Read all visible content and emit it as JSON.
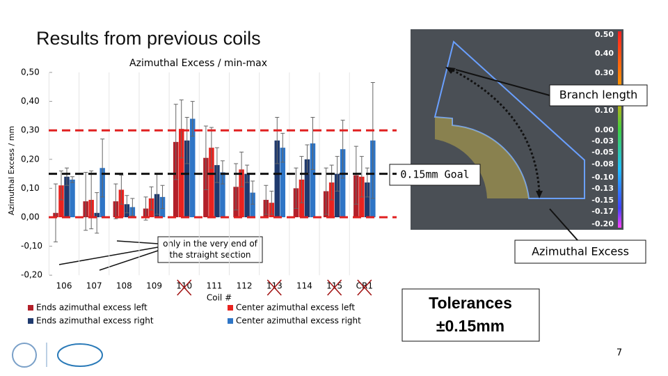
{
  "slide_title": "Results from previous coils",
  "page_number": "7",
  "chart_data": {
    "type": "bar",
    "title": "Azimuthal Excess / min-max",
    "y_label": "Azimuthal Excess / mm",
    "x_label": "Coil #",
    "categories": [
      "106",
      "107",
      "108",
      "109",
      "110",
      "111",
      "112",
      "113",
      "114",
      "115",
      "CR1"
    ],
    "crossed_out": [
      4,
      7,
      9,
      10
    ],
    "ylim": [
      -0.2,
      0.5
    ],
    "yticks": [
      {
        "value": -0.2,
        "label": "-0,20"
      },
      {
        "value": -0.1,
        "label": "-0,10"
      },
      {
        "value": 0,
        "label": "0,00"
      },
      {
        "value": 0.1,
        "label": "0,10"
      },
      {
        "value": 0.2,
        "label": "0,20"
      },
      {
        "value": 0.3,
        "label": "0,30"
      },
      {
        "value": 0.4,
        "label": "0,40"
      },
      {
        "value": 0.5,
        "label": "0,50"
      }
    ],
    "series": [
      {
        "name": "Ends azimuthal excess left",
        "color": "#b3202a",
        "values": [
          0.015,
          0.055,
          0.055,
          0.03,
          0.26,
          0.205,
          0.105,
          0.06,
          0.1,
          0.09,
          0.145
        ],
        "errors": [
          0.1,
          0.1,
          0.06,
          0.04,
          0.13,
          0.11,
          0.08,
          0.05,
          0.07,
          0.08,
          0.1
        ]
      },
      {
        "name": "Center azimuthal excess left",
        "color": "#e8231f",
        "values": [
          0.11,
          0.06,
          0.095,
          0.065,
          0.305,
          0.24,
          0.165,
          0.05,
          0.13,
          0.12,
          0.14
        ],
        "errors": [
          0.05,
          0.1,
          0.05,
          0.04,
          0.1,
          0.07,
          0.06,
          0.04,
          0.08,
          0.06,
          0.07
        ]
      },
      {
        "name": "Ends azimuthal excess right",
        "color": "#1f3a6e",
        "values": [
          0.14,
          0.015,
          0.045,
          0.08,
          0.265,
          0.18,
          0.15,
          0.265,
          0.2,
          0.15,
          0.12
        ],
        "errors": [
          0.03,
          0.07,
          0.03,
          0.07,
          0.08,
          0.06,
          0.03,
          0.08,
          0.05,
          0.06,
          0.05
        ]
      },
      {
        "name": "Center azimuthal excess right",
        "color": "#2e75c6",
        "values": [
          0.13,
          0.17,
          0.035,
          0.07,
          0.34,
          0.155,
          0.085,
          0.24,
          0.255,
          0.235,
          0.265
        ],
        "errors": [
          0.01,
          0.1,
          0.03,
          0.04,
          0.06,
          0.04,
          0.04,
          0.05,
          0.09,
          0.1,
          0.2
        ]
      }
    ],
    "reference_lines": [
      {
        "value": 0.3,
        "color": "#e02020"
      },
      {
        "value": 0.15,
        "color": "#111111"
      },
      {
        "value": 0,
        "color": "#e02020"
      }
    ]
  },
  "annotations": {
    "goal": "0.15mm Goal",
    "end_note": "only in the very end of the straight section",
    "branch": "Branch length",
    "azimuthal": "Azimuthal Excess",
    "tolerance_1": "Tolerances",
    "tolerance_2": "±0.15mm"
  },
  "image": {
    "colorbar_labels": [
      "0.50",
      "0.40",
      "0.30",
      "0.10",
      "0.00",
      "-0.03",
      "-0.05",
      "-0.08",
      "-0.10",
      "-0.13",
      "-0.15",
      "-0.17",
      "-0.20"
    ]
  }
}
